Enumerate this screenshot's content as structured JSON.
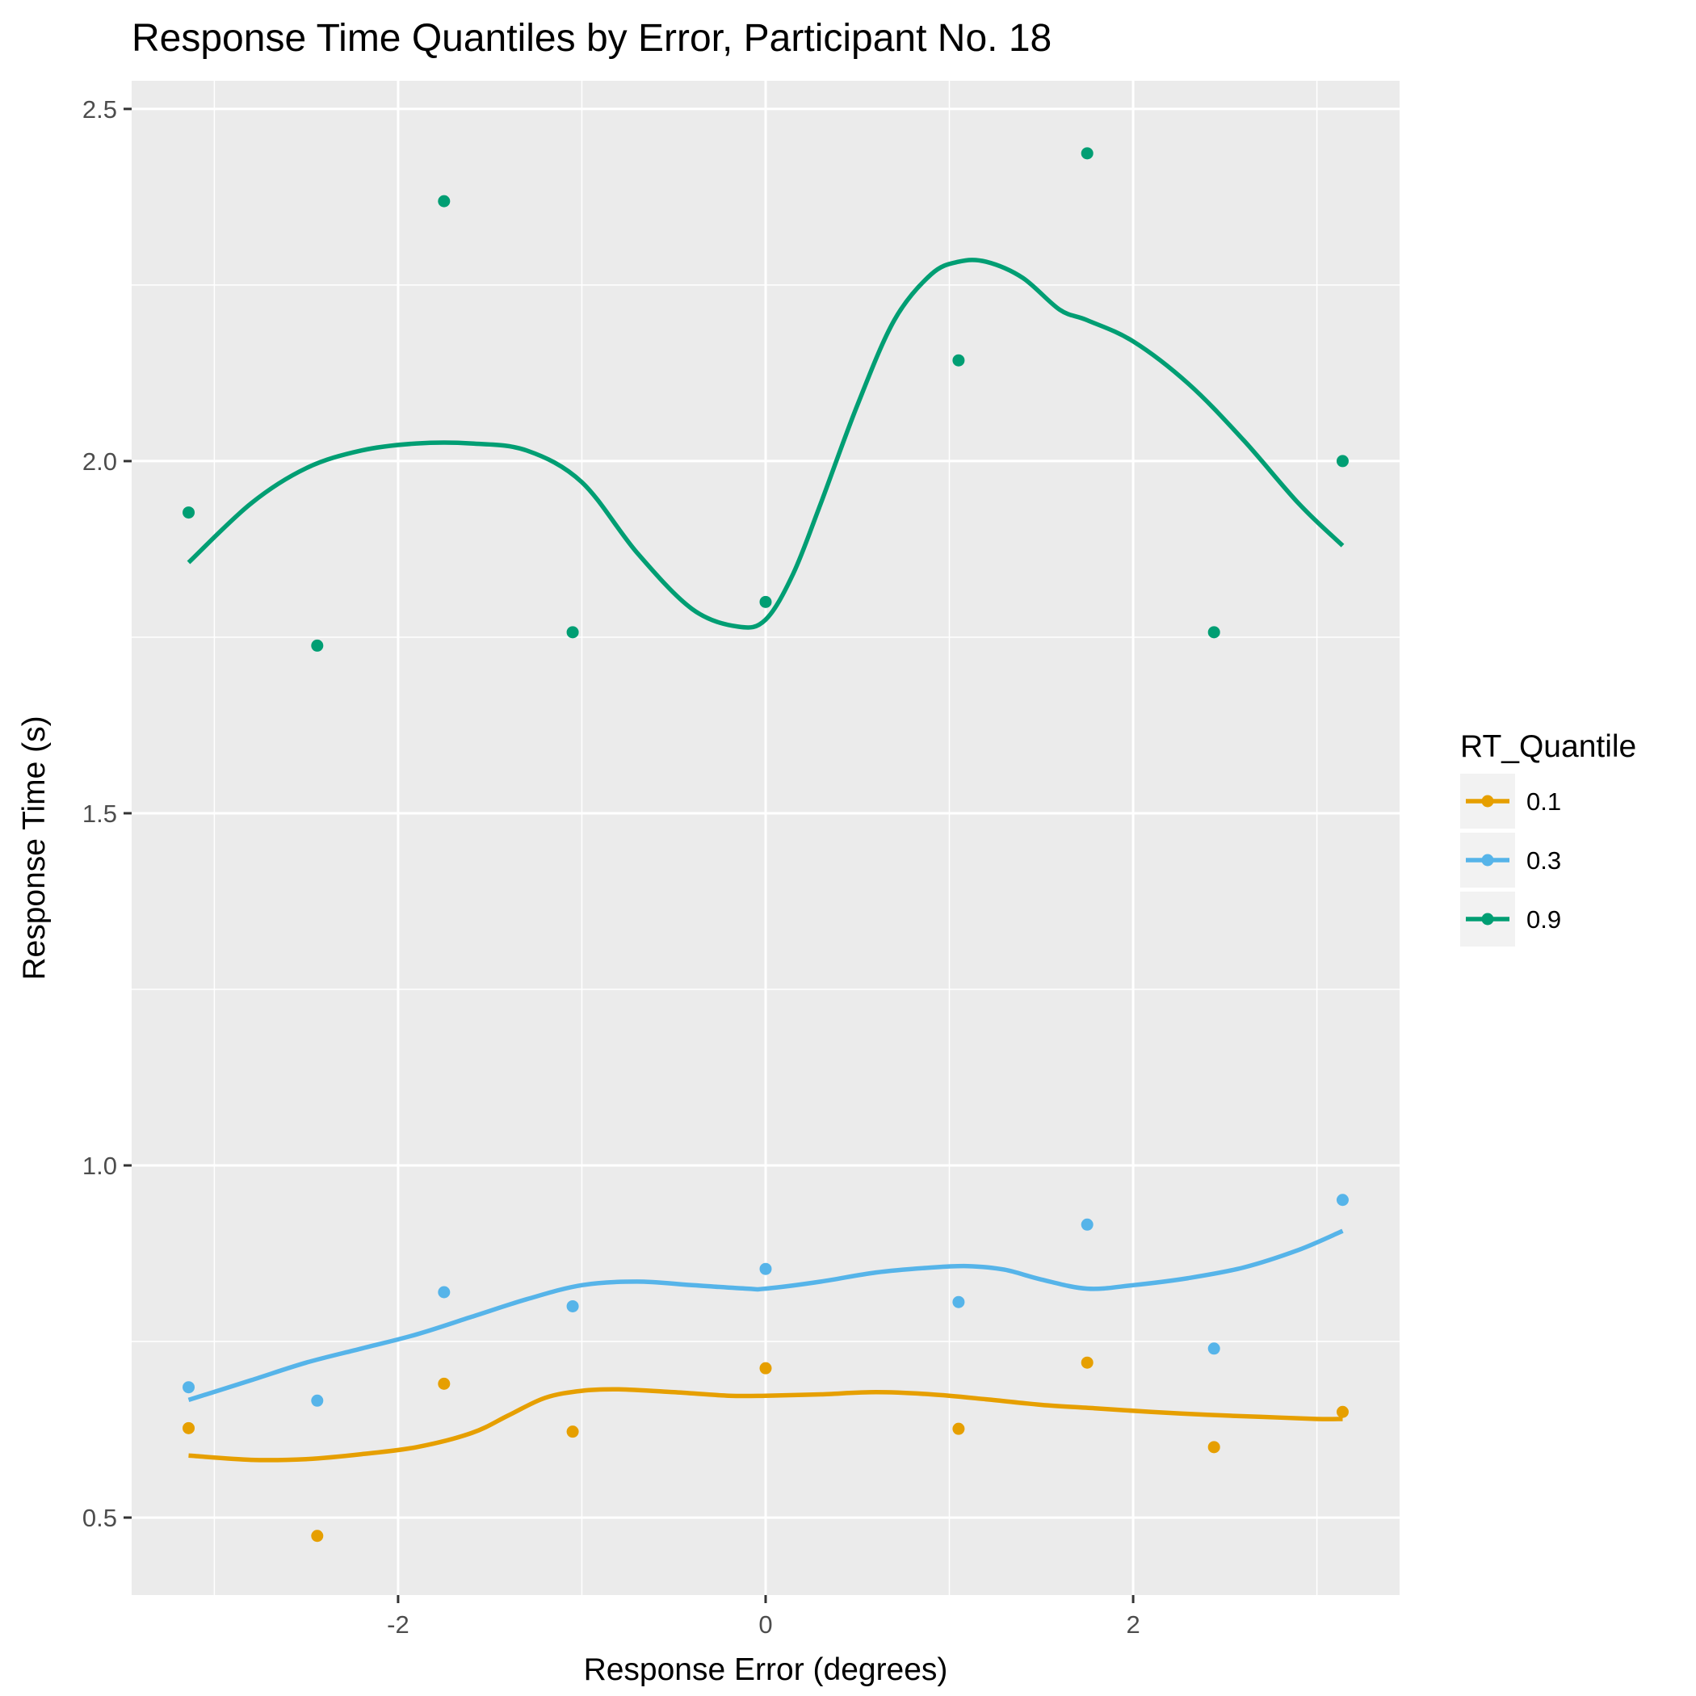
{
  "chart_data": {
    "type": "scatter",
    "title": "Response Time Quantiles by Error, Participant No.  18",
    "xlabel": "Response Error (degrees)",
    "ylabel": "Response Time (s)",
    "xlim": [
      -3.45,
      3.45
    ],
    "ylim": [
      0.39,
      2.54
    ],
    "x_ticks": [
      -2,
      0,
      2
    ],
    "x_tick_labels": [
      "-2",
      "0",
      "2"
    ],
    "y_ticks": [
      0.5,
      1.0,
      1.5,
      2.0,
      2.5
    ],
    "y_tick_labels": [
      "0.5",
      "1.0",
      "1.5",
      "2.0",
      "2.5"
    ],
    "grid": true,
    "legend": {
      "title": "RT_Quantile",
      "position": "right"
    },
    "series": [
      {
        "name": "0.1",
        "color": "#E69F00",
        "points": {
          "x": [
            -3.14,
            -2.44,
            -1.75,
            -1.05,
            0.0,
            1.05,
            1.75,
            2.44,
            3.14
          ],
          "y": [
            0.627,
            0.474,
            0.69,
            0.622,
            0.712,
            0.626,
            0.72,
            0.6,
            0.65
          ]
        },
        "smooth": {
          "x": [
            -3.14,
            -2.8,
            -2.5,
            -2.2,
            -1.9,
            -1.6,
            -1.4,
            -1.2,
            -1.0,
            -0.8,
            -0.5,
            -0.2,
            0.0,
            0.3,
            0.6,
            0.9,
            1.2,
            1.5,
            1.8,
            2.1,
            2.4,
            2.7,
            3.0,
            3.14
          ],
          "y": [
            0.588,
            0.582,
            0.583,
            0.59,
            0.6,
            0.62,
            0.645,
            0.67,
            0.68,
            0.682,
            0.678,
            0.673,
            0.673,
            0.675,
            0.678,
            0.675,
            0.668,
            0.66,
            0.655,
            0.65,
            0.646,
            0.643,
            0.64,
            0.64
          ]
        }
      },
      {
        "name": "0.3",
        "color": "#56B4E9",
        "points": {
          "x": [
            -3.14,
            -2.44,
            -1.75,
            -1.05,
            0.0,
            1.05,
            1.75,
            2.44,
            3.14
          ],
          "y": [
            0.685,
            0.666,
            0.82,
            0.8,
            0.853,
            0.806,
            0.916,
            0.74,
            0.951
          ]
        },
        "smooth": {
          "x": [
            -3.14,
            -2.8,
            -2.5,
            -2.2,
            -1.9,
            -1.6,
            -1.3,
            -1.0,
            -0.7,
            -0.4,
            -0.1,
            0.0,
            0.3,
            0.6,
            0.9,
            1.1,
            1.3,
            1.5,
            1.75,
            2.0,
            2.3,
            2.6,
            2.9,
            3.14
          ],
          "y": [
            0.667,
            0.695,
            0.72,
            0.74,
            0.76,
            0.785,
            0.81,
            0.83,
            0.835,
            0.83,
            0.825,
            0.825,
            0.835,
            0.848,
            0.855,
            0.857,
            0.852,
            0.838,
            0.825,
            0.83,
            0.84,
            0.855,
            0.88,
            0.907
          ]
        }
      },
      {
        "name": "0.9",
        "color": "#009E73",
        "points": {
          "x": [
            -3.14,
            -2.44,
            -1.75,
            -1.05,
            0.0,
            1.05,
            1.75,
            2.44,
            3.14
          ],
          "y": [
            1.927,
            1.738,
            2.369,
            1.757,
            1.8,
            2.143,
            2.437,
            1.757,
            2.0
          ]
        },
        "smooth": {
          "x": [
            -3.14,
            -2.8,
            -2.5,
            -2.2,
            -1.9,
            -1.6,
            -1.3,
            -1.0,
            -0.7,
            -0.4,
            -0.15,
            0.0,
            0.15,
            0.3,
            0.5,
            0.7,
            0.9,
            1.05,
            1.2,
            1.4,
            1.6,
            1.75,
            2.0,
            2.3,
            2.6,
            2.9,
            3.14
          ],
          "y": [
            1.856,
            1.94,
            1.99,
            2.015,
            2.025,
            2.025,
            2.015,
            1.97,
            1.87,
            1.79,
            1.765,
            1.775,
            1.84,
            1.94,
            2.08,
            2.2,
            2.265,
            2.283,
            2.283,
            2.26,
            2.215,
            2.2,
            2.17,
            2.11,
            2.03,
            1.94,
            1.88
          ]
        }
      }
    ]
  }
}
